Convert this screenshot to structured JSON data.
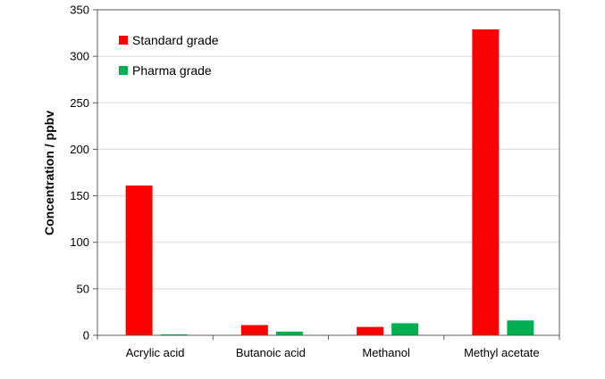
{
  "chart_data": {
    "type": "bar",
    "categories": [
      "Acrylic acid",
      "Butanoic acid",
      "Methanol",
      "Methyl acetate"
    ],
    "series": [
      {
        "name": "Standard grade",
        "values": [
          161,
          11,
          9,
          329
        ],
        "color": "#ff0000"
      },
      {
        "name": "Pharma grade",
        "values": [
          1,
          4,
          13,
          16
        ],
        "color": "#00b050"
      }
    ],
    "title": "",
    "xlabel": "",
    "ylabel": "Concentration / ppbv",
    "ylim": [
      0,
      350
    ],
    "yticks": [
      0,
      50,
      100,
      150,
      200,
      250,
      300,
      350
    ],
    "ytick_labels": [
      "0",
      "50",
      "100",
      "150",
      "200",
      "250",
      "300",
      "350"
    ],
    "grid": true,
    "legend_position": "top-left"
  }
}
